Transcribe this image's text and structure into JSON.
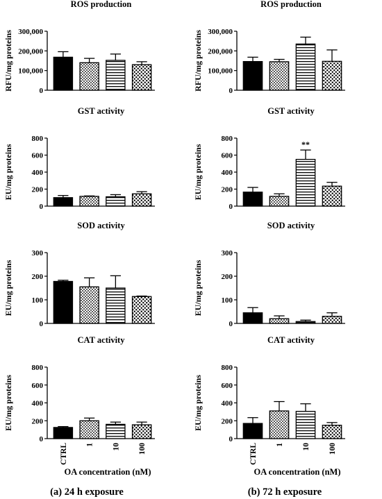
{
  "captions": [
    "(a)  24 h exposure",
    "(b)  72 h exposure"
  ],
  "xlabel": "OA concentration (nM)",
  "chart_data": [
    {
      "type": "bar",
      "title": "ROS production",
      "ylabel": "RFU/mg proteins",
      "categories": [
        "CTRL",
        "1",
        "10",
        "100"
      ],
      "values": [
        168000,
        140000,
        152000,
        130000
      ],
      "errors": [
        28000,
        22000,
        32000,
        15000
      ],
      "ylim": [
        0,
        300000
      ],
      "yticks": [
        "0",
        "100,000",
        "200,000",
        "300,000"
      ],
      "annotations": [
        "",
        "",
        "",
        ""
      ]
    },
    {
      "type": "bar",
      "title": "ROS production",
      "ylabel": "RFU/mg proteins",
      "categories": [
        "CTRL",
        "1",
        "10",
        "100"
      ],
      "values": [
        146000,
        145000,
        235000,
        147000
      ],
      "errors": [
        22000,
        12000,
        35000,
        58000
      ],
      "ylim": [
        0,
        300000
      ],
      "yticks": [
        "0",
        "100,000",
        "200,000",
        "300,000"
      ],
      "annotations": [
        "",
        "",
        "",
        ""
      ]
    },
    {
      "type": "bar",
      "title": "GST activity",
      "ylabel": "EU/mg proteins",
      "categories": [
        "CTRL",
        "1",
        "10",
        "100"
      ],
      "values": [
        100,
        115,
        110,
        145
      ],
      "errors": [
        25,
        5,
        25,
        25
      ],
      "ylim": [
        0,
        800
      ],
      "yticks": [
        "0",
        "200",
        "400",
        "600",
        "800"
      ],
      "annotations": [
        "",
        "",
        "",
        ""
      ]
    },
    {
      "type": "bar",
      "title": "GST activity",
      "ylabel": "EU/mg proteins",
      "categories": [
        "CTRL",
        "1",
        "10",
        "100"
      ],
      "values": [
        165,
        115,
        550,
        235
      ],
      "errors": [
        55,
        30,
        110,
        45
      ],
      "ylim": [
        0,
        800
      ],
      "yticks": [
        "0",
        "200",
        "400",
        "600",
        "800"
      ],
      "annotations": [
        "",
        "",
        "**",
        ""
      ]
    },
    {
      "type": "bar",
      "title": "SOD activity",
      "ylabel": "EU/mg proteins",
      "categories": [
        "CTRL",
        "1",
        "10",
        "100"
      ],
      "values": [
        178,
        155,
        150,
        114
      ],
      "errors": [
        5,
        38,
        52,
        2
      ],
      "ylim": [
        0,
        300
      ],
      "yticks": [
        "0",
        "100",
        "200",
        "300"
      ],
      "annotations": [
        "",
        "",
        "",
        ""
      ]
    },
    {
      "type": "bar",
      "title": "SOD activity",
      "ylabel": "EU/mg proteins",
      "categories": [
        "CTRL",
        "1",
        "10",
        "100"
      ],
      "values": [
        45,
        20,
        8,
        30
      ],
      "errors": [
        22,
        12,
        6,
        15
      ],
      "ylim": [
        0,
        300
      ],
      "yticks": [
        "0",
        "100",
        "200",
        "300"
      ],
      "annotations": [
        "",
        "",
        "",
        ""
      ]
    },
    {
      "type": "bar",
      "title": "CAT activity",
      "ylabel": "EU/mg proteins",
      "categories": [
        "CTRL",
        "1",
        "10",
        "100"
      ],
      "values": [
        125,
        200,
        160,
        155
      ],
      "errors": [
        10,
        30,
        25,
        30
      ],
      "ylim": [
        0,
        800
      ],
      "yticks": [
        "0",
        "200",
        "400",
        "600",
        "800"
      ],
      "annotations": [
        "",
        "",
        "",
        ""
      ]
    },
    {
      "type": "bar",
      "title": "CAT activity",
      "ylabel": "EU/mg proteins",
      "categories": [
        "CTRL",
        "1",
        "10",
        "100"
      ],
      "values": [
        170,
        310,
        305,
        150
      ],
      "errors": [
        65,
        105,
        85,
        30
      ],
      "ylim": [
        0,
        800
      ],
      "yticks": [
        "0",
        "200",
        "400",
        "600",
        "800"
      ],
      "annotations": [
        "",
        "",
        "",
        ""
      ]
    }
  ]
}
